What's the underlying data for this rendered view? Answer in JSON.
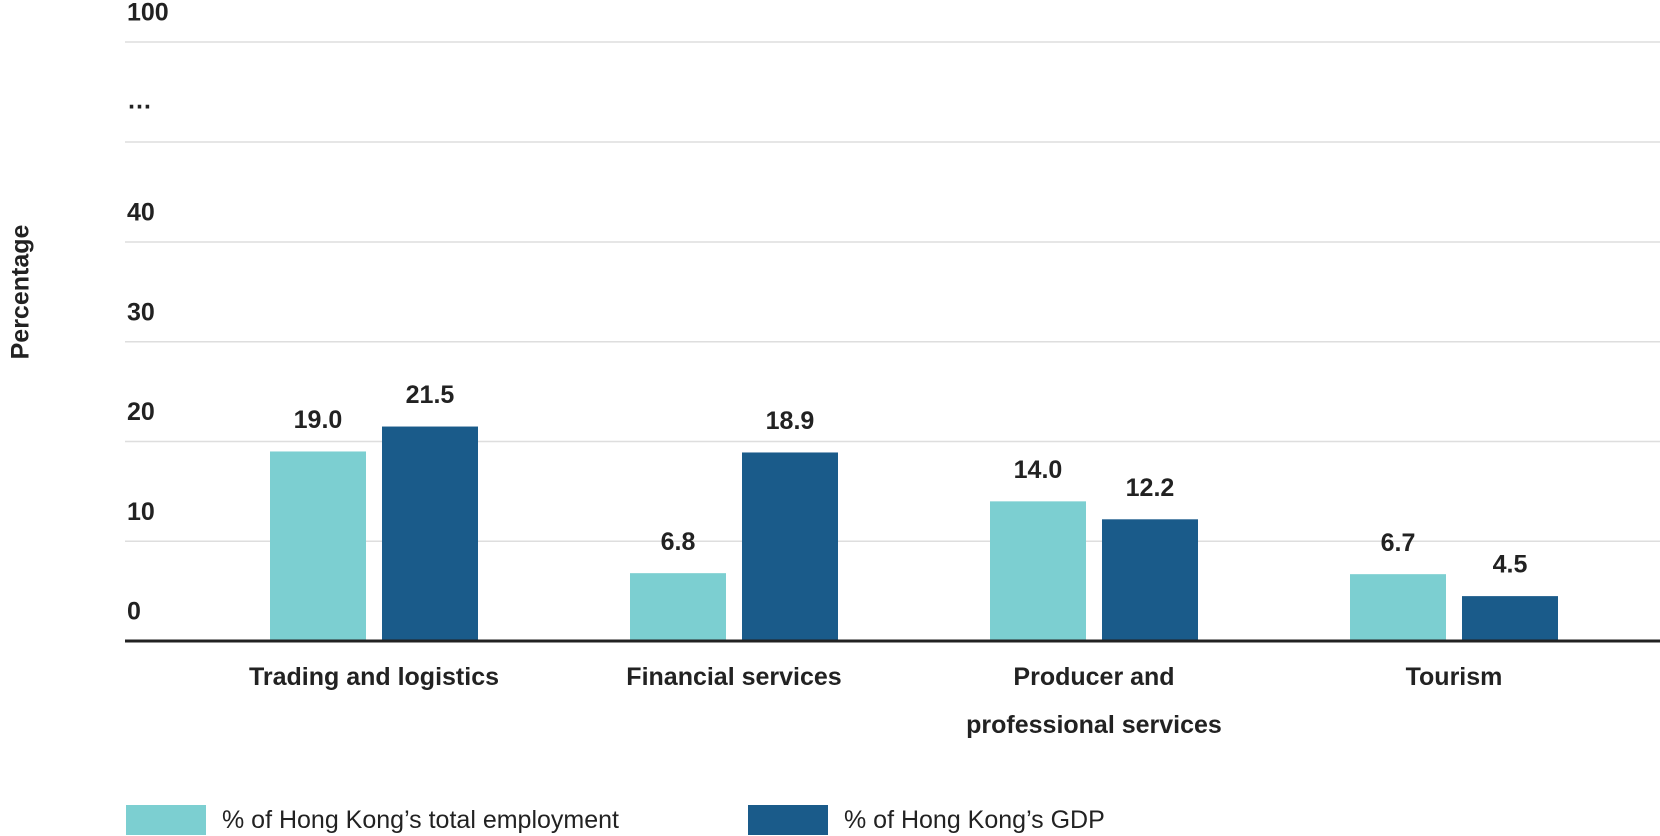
{
  "chart_data": {
    "type": "bar",
    "y_label": "Percentage",
    "categories": [
      "Trading and logistics",
      "Financial services",
      "Producer and professional services",
      "Tourism"
    ],
    "series": [
      {
        "name": "% of Hong Kong’s total employment",
        "color": "#7ccfd1",
        "values": [
          19.0,
          6.8,
          14.0,
          6.7
        ],
        "value_labels": [
          "19.0",
          "6.8",
          "14.0",
          "6.7"
        ]
      },
      {
        "name": "% of Hong Kong’s GDP",
        "color": "#1a5b8a",
        "values": [
          21.5,
          18.9,
          12.2,
          4.5
        ],
        "value_labels": [
          "21.5",
          "18.9",
          "12.2",
          "4.5"
        ]
      }
    ],
    "ylim": [
      0,
      100
    ],
    "yticks": [
      0,
      10,
      20,
      30,
      40,
      100
    ],
    "y_break": {
      "from": 40,
      "to": 100,
      "label": "…"
    },
    "grid": true,
    "legend": "bottom-left"
  }
}
